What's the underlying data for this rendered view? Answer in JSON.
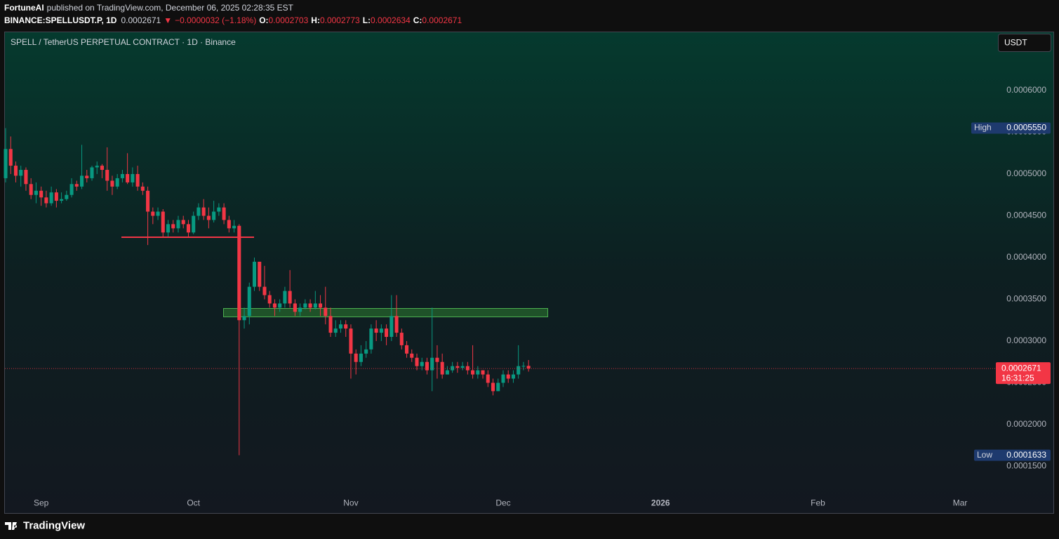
{
  "header": {
    "author": "FortuneAI",
    "published": "published on TradingView.com, December 06, 2025 02:28:35 EST",
    "symbol": "BINANCE:SPELLUSDT.P, 1D",
    "last": "0.0002671",
    "arrow": "▼",
    "change": "−0.0000032 (−1.18%)",
    "o_label": "O:",
    "o": "0.0002703",
    "h_label": "H:",
    "h": "0.0002773",
    "l_label": "L:",
    "l": "0.0002634",
    "c_label": "C:",
    "c": "0.0002671"
  },
  "currency_button": "USDT",
  "footer": {
    "brand": "TradingView"
  },
  "chart_data": {
    "type": "candlestick",
    "title": "SPELL / TetherUS PERPETUAL CONTRACT · 1D · Binance",
    "up_color": "#089981",
    "down_color": "#f23645",
    "grid": false,
    "open": [
      0.000495,
      0.00053,
      0.00051,
      0.000498,
      0.000505,
      0.000488,
      0.000475,
      0.00048,
      0.000472,
      0.000465,
      0.000478,
      0.000468,
      0.00047,
      0.000475,
      0.000488,
      0.000485,
      0.000498,
      0.000495,
      0.000508,
      0.00051,
      0.000505,
      0.000492,
      0.000485,
      0.000495,
      0.0005,
      0.00049,
      0.0005,
      0.000485,
      0.00048,
      0.000455,
      0.00045,
      0.000455,
      0.00043,
      0.00044,
      0.000435,
      0.000445,
      0.00044,
      0.00043,
      0.00045,
      0.00046,
      0.00045,
      0.000445,
      0.000455,
      0.00046,
      0.000445,
      0.000435,
      0.000438,
      0.000325,
      0.00033,
      0.000365,
      0.000395,
      0.000365,
      0.000355,
      0.000345,
      0.00034,
      0.000345,
      0.00036,
      0.000345,
      0.000335,
      0.00034,
      0.000345,
      0.00034,
      0.000345,
      0.00034,
      0.00033,
      0.00031,
      0.000315,
      0.00032,
      0.000315,
      0.000285,
      0.000275,
      0.000285,
      0.00029,
      0.000315,
      0.00031,
      0.000315,
      0.000305,
      0.00033,
      0.00031,
      0.000295,
      0.000285,
      0.00028,
      0.00027,
      0.000275,
      0.000265,
      0.00028,
      0.000275,
      0.00026,
      0.000265,
      0.00027,
      0.000268,
      0.00027,
      0.000265,
      0.00026,
      0.000265,
      0.00026,
      0.00025,
      0.00024,
      0.00025,
      0.00026,
      0.000255,
      0.00026,
      0.00027,
      0.0002703
    ],
    "high": [
      0.000555,
      0.000545,
      0.000515,
      0.00051,
      0.000508,
      0.000495,
      0.00049,
      0.000485,
      0.00048,
      0.000485,
      0.000482,
      0.000478,
      0.00048,
      0.000495,
      0.000492,
      0.000535,
      0.000505,
      0.00051,
      0.000515,
      0.000512,
      0.000532,
      0.000498,
      0.0005,
      0.000505,
      0.000525,
      0.000508,
      0.00051,
      0.00049,
      0.000485,
      0.00046,
      0.00046,
      0.000458,
      0.000445,
      0.000445,
      0.00045,
      0.00045,
      0.000445,
      0.000455,
      0.000465,
      0.00047,
      0.00046,
      0.000468,
      0.000465,
      0.000465,
      0.00045,
      0.000445,
      0.00044,
      0.00034,
      0.00037,
      0.0004,
      0.000395,
      0.00039,
      0.00036,
      0.00035,
      0.00035,
      0.000365,
      0.000385,
      0.00035,
      0.000345,
      0.00035,
      0.00035,
      0.00036,
      0.000355,
      0.000365,
      0.00034,
      0.000325,
      0.000325,
      0.000325,
      0.00032,
      0.00029,
      0.000295,
      0.0003,
      0.00032,
      0.000325,
      0.00032,
      0.00032,
      0.000355,
      0.000355,
      0.000315,
      0.0003,
      0.00029,
      0.000285,
      0.00028,
      0.00028,
      0.00034,
      0.000295,
      0.000285,
      0.00027,
      0.000275,
      0.000275,
      0.000275,
      0.000275,
      0.000295,
      0.00027,
      0.000265,
      0.000265,
      0.000255,
      0.000255,
      0.000265,
      0.000265,
      0.000265,
      0.000295,
      0.000275,
      0.0002773
    ],
    "low": [
      0.00049,
      0.0005,
      0.00049,
      0.000485,
      0.00048,
      0.00047,
      0.000465,
      0.000462,
      0.00046,
      0.000462,
      0.00046,
      0.000465,
      0.000468,
      0.000472,
      0.00048,
      0.000482,
      0.00049,
      0.000492,
      0.0005,
      0.000495,
      0.00048,
      0.000475,
      0.000482,
      0.00049,
      0.000488,
      0.000485,
      0.00048,
      0.000475,
      0.000415,
      0.00044,
      0.000445,
      0.000425,
      0.000425,
      0.00043,
      0.00043,
      0.000435,
      0.000425,
      0.000428,
      0.000445,
      0.000445,
      0.000435,
      0.000442,
      0.00045,
      0.00044,
      0.00043,
      0.00043,
      0.0001633,
      0.000315,
      0.00032,
      0.00036,
      0.00036,
      0.00035,
      0.00034,
      0.00033,
      0.000335,
      0.00034,
      0.00034,
      0.00033,
      0.00033,
      0.000338,
      0.000335,
      0.000338,
      0.00033,
      0.00032,
      0.000305,
      0.000305,
      0.00031,
      0.000305,
      0.000255,
      0.00026,
      0.00027,
      0.00028,
      0.000285,
      0.0003,
      0.0003,
      0.000295,
      0.0003,
      0.000305,
      0.00029,
      0.00028,
      0.000275,
      0.000265,
      0.000265,
      0.00026,
      0.00024,
      0.000255,
      0.000255,
      0.00026,
      0.000262,
      0.000262,
      0.000265,
      0.00026,
      0.000255,
      0.000255,
      0.000255,
      0.000245,
      0.000235,
      0.00024,
      0.000245,
      0.00025,
      0.00025,
      0.000255,
      0.000265,
      0.0002634
    ],
    "close": [
      0.00053,
      0.00051,
      0.000498,
      0.000505,
      0.000488,
      0.000475,
      0.00048,
      0.000472,
      0.000465,
      0.000478,
      0.000468,
      0.00047,
      0.000475,
      0.000488,
      0.000485,
      0.000498,
      0.000495,
      0.000508,
      0.00051,
      0.000505,
      0.000492,
      0.000485,
      0.000495,
      0.0005,
      0.00049,
      0.0005,
      0.000485,
      0.00048,
      0.000455,
      0.00045,
      0.000455,
      0.00043,
      0.00044,
      0.000435,
      0.000445,
      0.00044,
      0.00043,
      0.00045,
      0.00046,
      0.00045,
      0.000445,
      0.000455,
      0.00046,
      0.000445,
      0.000435,
      0.000438,
      0.000325,
      0.00033,
      0.000365,
      0.000395,
      0.000365,
      0.000355,
      0.000345,
      0.00034,
      0.000345,
      0.00036,
      0.000345,
      0.000335,
      0.00034,
      0.000345,
      0.00034,
      0.000345,
      0.00034,
      0.00033,
      0.00031,
      0.000315,
      0.00032,
      0.000315,
      0.000285,
      0.000275,
      0.000285,
      0.00029,
      0.000315,
      0.00031,
      0.000315,
      0.000305,
      0.00033,
      0.00031,
      0.000295,
      0.000285,
      0.00028,
      0.00027,
      0.000275,
      0.000265,
      0.00028,
      0.000275,
      0.00026,
      0.000265,
      0.00027,
      0.000268,
      0.00027,
      0.000265,
      0.00026,
      0.000265,
      0.00026,
      0.00025,
      0.00024,
      0.00025,
      0.00026,
      0.000255,
      0.00026,
      0.00027,
      0.0002703,
      0.0002671
    ],
    "xlim": [
      -0.14,
      194.9
    ],
    "xticks": [
      {
        "value": 7,
        "label": "Sep"
      },
      {
        "value": 37,
        "label": "Oct"
      },
      {
        "value": 68,
        "label": "Nov"
      },
      {
        "value": 98,
        "label": "Dec"
      },
      {
        "value": 129,
        "label": "2026"
      },
      {
        "value": 160,
        "label": "Feb"
      },
      {
        "value": 188,
        "label": "Mar"
      }
    ],
    "ylim": [
      0.0001134,
      0.0006706
    ],
    "yticks": [
      {
        "value": 0.00015,
        "label": "0.0001500"
      },
      {
        "value": 0.0002,
        "label": "0.0002000"
      },
      {
        "value": 0.00025,
        "label": "0.0002500"
      },
      {
        "value": 0.0003,
        "label": "0.0003000"
      },
      {
        "value": 0.00035,
        "label": "0.0003500"
      },
      {
        "value": 0.0004,
        "label": "0.0004000"
      },
      {
        "value": 0.00045,
        "label": "0.0004500"
      },
      {
        "value": 0.0005,
        "label": "0.0005000"
      },
      {
        "value": 0.00055,
        "label": "0.0005500"
      },
      {
        "value": 0.0006,
        "label": "0.0006000"
      }
    ],
    "high_tag": {
      "label": "High",
      "value": 0.000555,
      "value_label": "0.0005550"
    },
    "low_tag": {
      "label": "Low",
      "value": 0.0001633,
      "value_label": "0.0001633"
    },
    "last_tag": {
      "value": 0.0002671,
      "value_label": "0.0002671",
      "countdown": "16:31:25"
    }
  }
}
